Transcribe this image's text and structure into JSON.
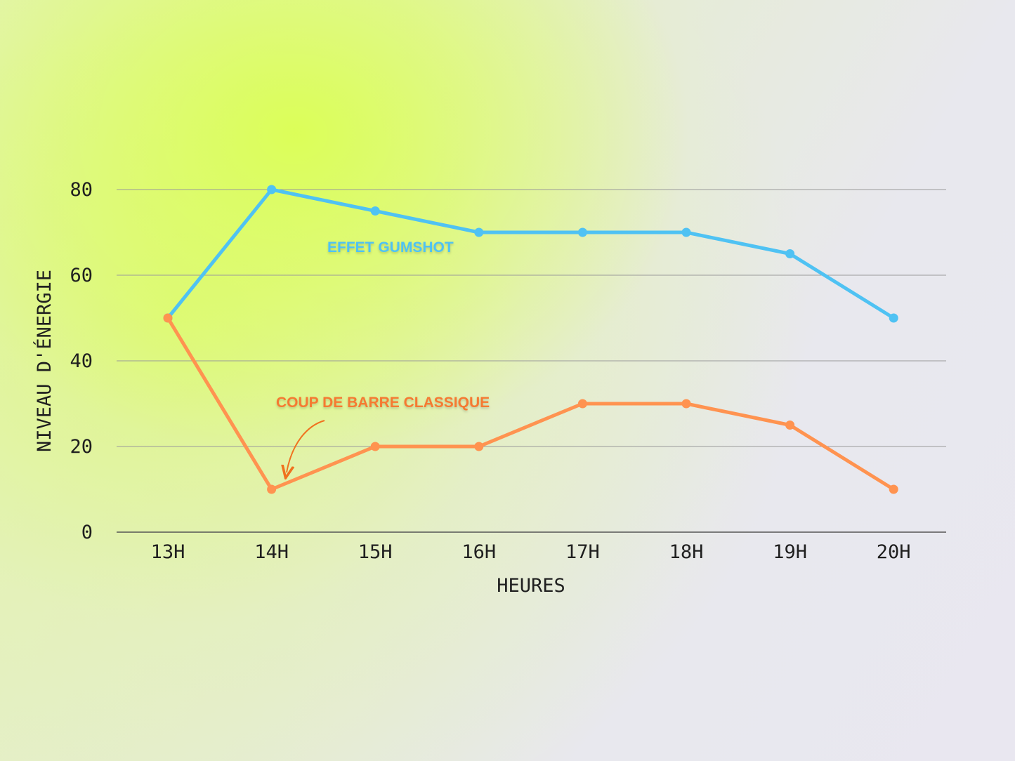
{
  "colors": {
    "blue": "#4fc2f3",
    "orange": "#ff9350",
    "grid": "#9a9a9a",
    "axis": "#555555",
    "arrow": "#f0711e"
  },
  "chart_data": {
    "type": "line",
    "categories": [
      "13H",
      "14H",
      "15H",
      "16H",
      "17H",
      "18H",
      "19H",
      "20H"
    ],
    "series": [
      {
        "values": [
          50,
          80,
          75,
          70,
          70,
          70,
          65,
          50
        ]
      },
      {
        "values": [
          50,
          10,
          20,
          20,
          30,
          30,
          25,
          10
        ]
      }
    ],
    "annotations": [
      "EFFET GUMSHOT",
      "COUP DE BARRE CLASSIQUE"
    ],
    "xlabel": "HEURES",
    "ylabel": "NIVEAU D'ÉNERGIE",
    "ylim": [
      0,
      80
    ],
    "yticks": [
      0,
      20,
      40,
      60,
      80
    ],
    "grid": true
  }
}
